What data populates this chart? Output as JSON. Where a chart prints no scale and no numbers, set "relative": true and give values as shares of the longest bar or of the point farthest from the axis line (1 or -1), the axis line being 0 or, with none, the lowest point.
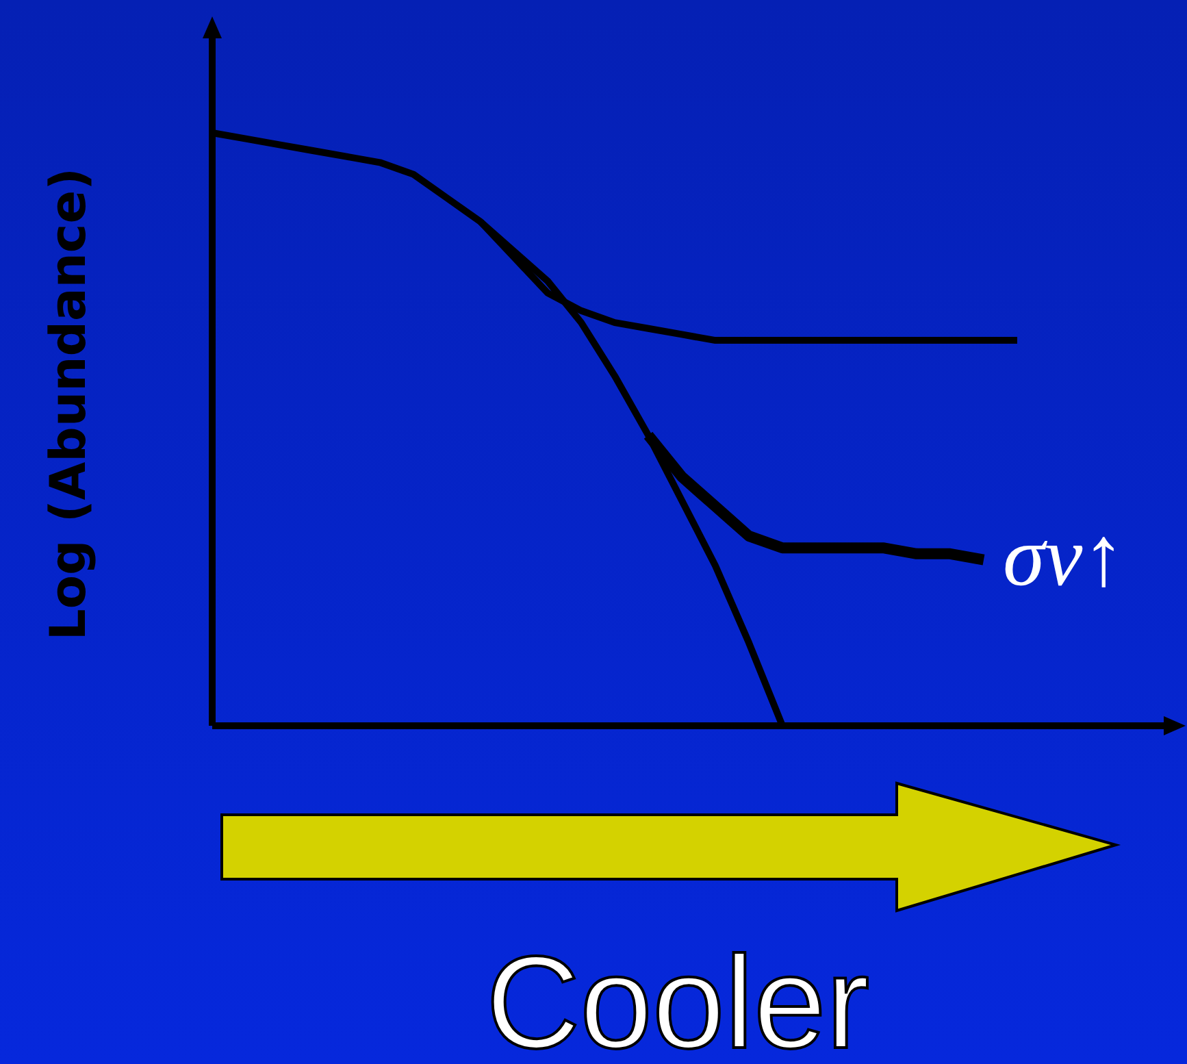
{
  "chart_data": {
    "type": "line",
    "relative": true,
    "xlabel": "Cooler",
    "ylabel": "Log (Abundance)",
    "categories": [
      null,
      null,
      null,
      null,
      null,
      null,
      null,
      null,
      null,
      null,
      null,
      null,
      null,
      null,
      null,
      null,
      null,
      null,
      null,
      null,
      null,
      null,
      null,
      null,
      null,
      null,
      null,
      null,
      null
    ],
    "series": [
      {
        "color": "#000000",
        "values": [
          1.0,
          0.99,
          0.98,
          0.97,
          0.96,
          0.95,
          0.93,
          0.89,
          0.85,
          0.8,
          0.75,
          0.68,
          0.59,
          0.49,
          0.38,
          0.27,
          0.14,
          0,
          null,
          null,
          null,
          null,
          null,
          null,
          null,
          null,
          null,
          null,
          null
        ]
      },
      {
        "color": "#000000",
        "values": [
          null,
          null,
          null,
          null,
          null,
          null,
          null,
          null,
          0.85,
          0.79,
          0.73,
          0.7,
          0.68,
          0.67,
          0.66,
          0.65,
          0.65,
          0.65,
          0.65,
          0.65,
          0.65,
          0.65,
          0.65,
          0.65,
          0.65,
          null,
          null,
          null,
          null
        ]
      },
      {
        "name": "σv↑",
        "color": "#000000",
        "values": [
          null,
          null,
          null,
          null,
          null,
          null,
          null,
          null,
          null,
          null,
          null,
          null,
          null,
          0.49,
          0.42,
          0.37,
          0.32,
          0.3,
          0.3,
          0.3,
          0.3,
          0.29,
          0.29,
          0.28,
          null,
          null,
          null,
          null,
          null
        ]
      }
    ]
  }
}
